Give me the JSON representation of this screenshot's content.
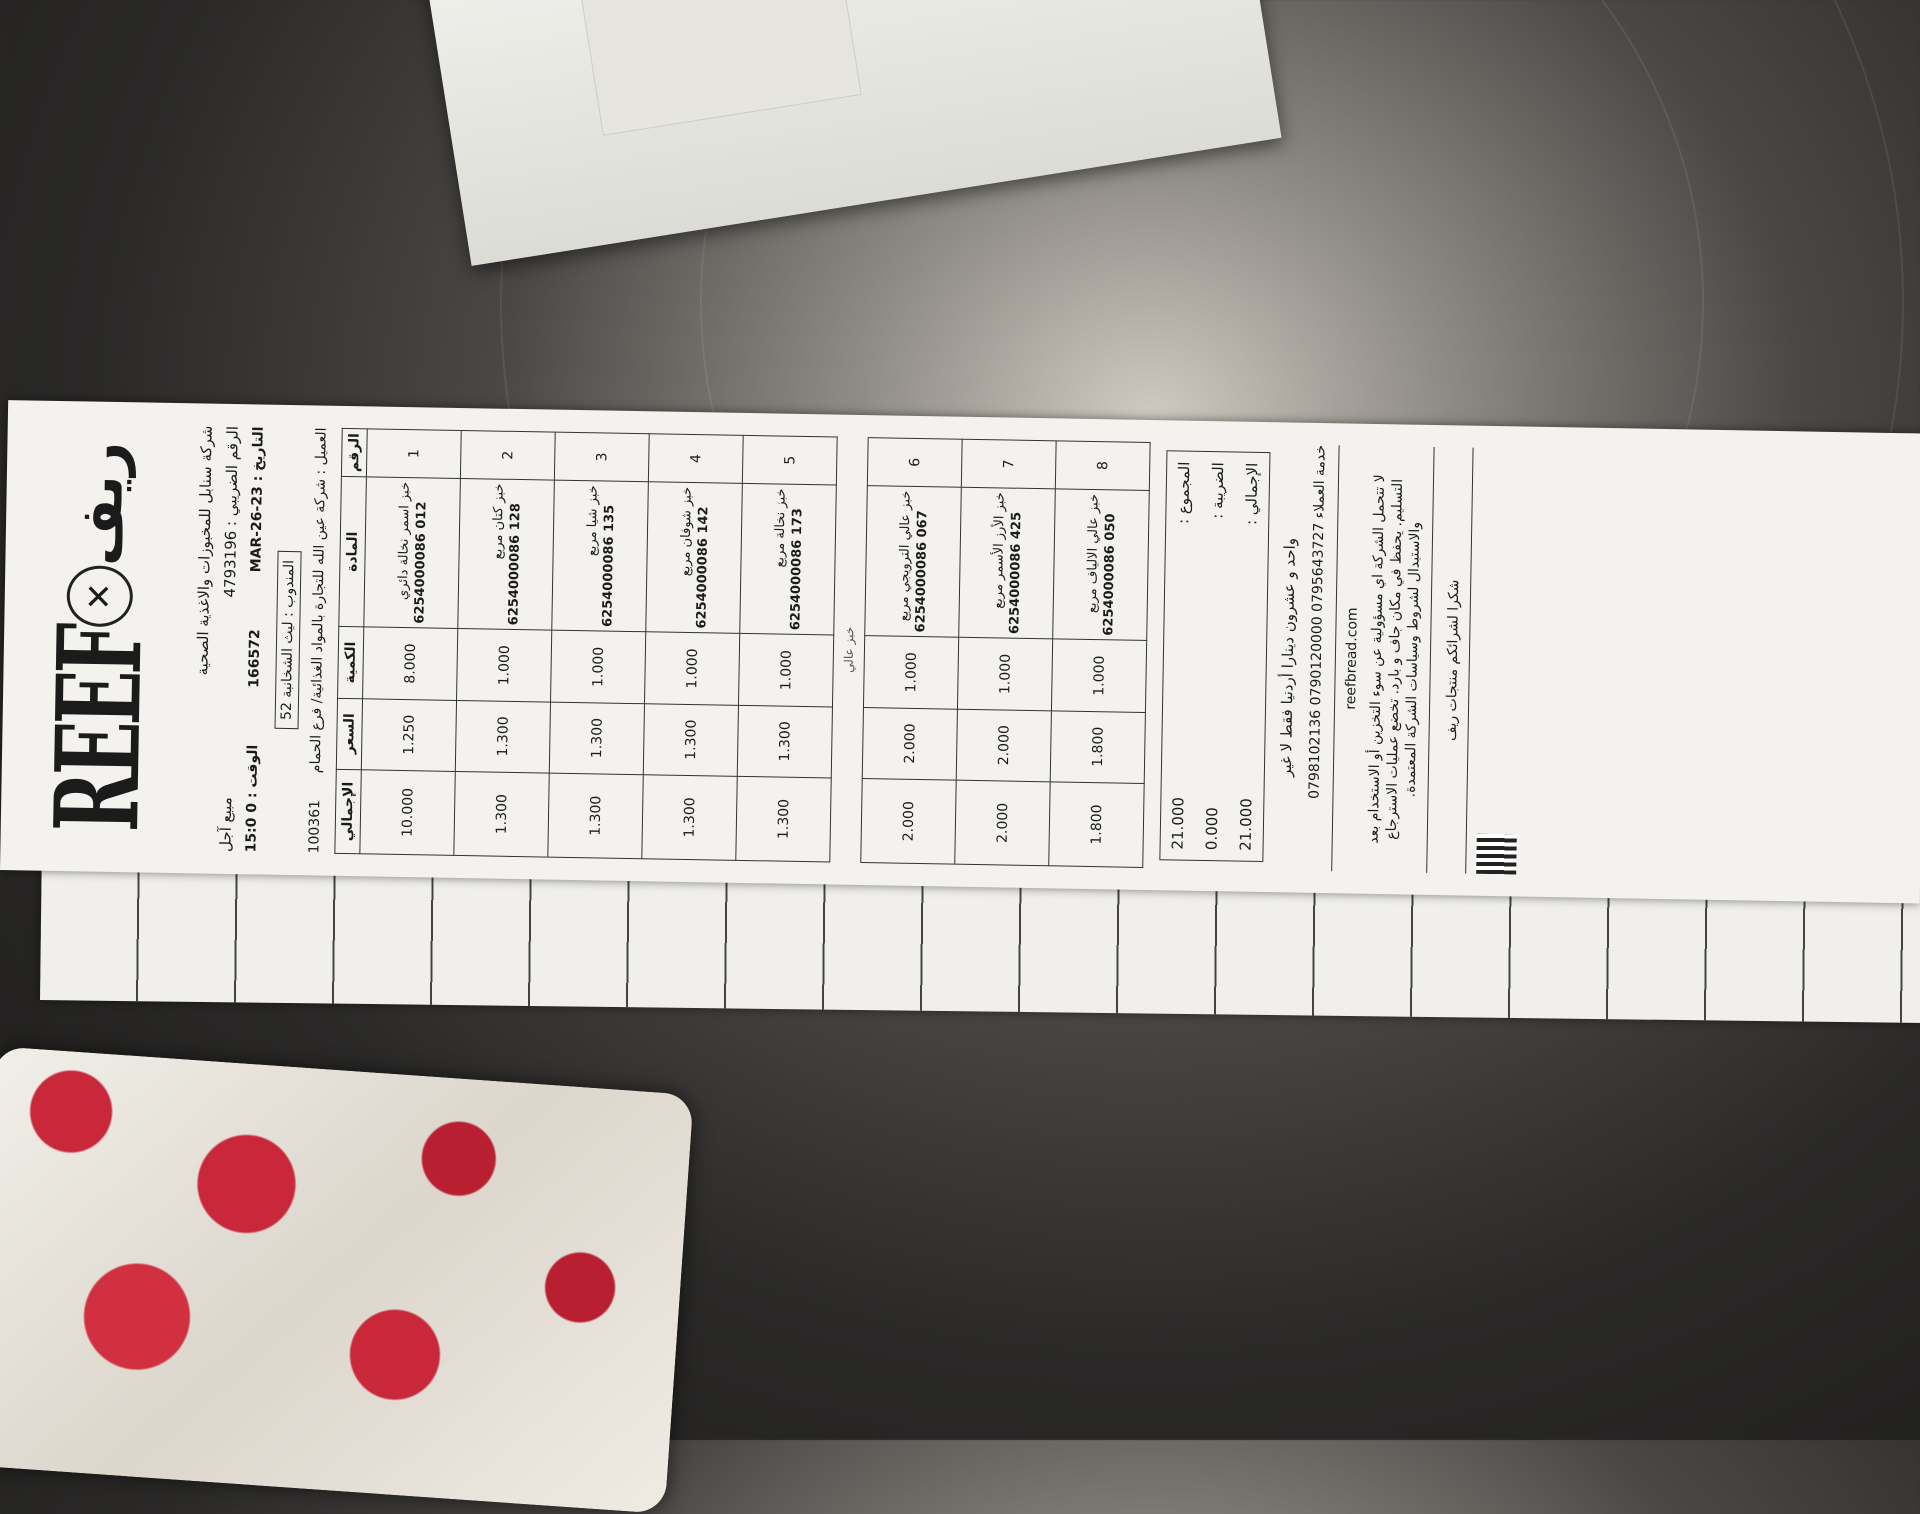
{
  "receipt": {
    "logo_en": "REEF",
    "logo_ar": "ريف",
    "company_name": "شركة سنابل للمخبوزات والاغذية الصحية",
    "tax_number": "الرقم الضريبي : 4793196",
    "sale_type": "مبيع آجل",
    "time_label": "الوقت :",
    "time_value": "15:0 0",
    "invoice_number": "166572",
    "date_label": "التاريخ :",
    "date_value": "MAR-26-23",
    "representative": "المندوب : ليث الشخانبة 52",
    "client_label": "العميل :",
    "client_value": "شركة عين الله للتجارة بالمواد الغذائية/ فرع الحمام",
    "client_code": "100361",
    "headers": {
      "num": "الرقم",
      "item": "المادة",
      "qty": "الكمية",
      "price": "السعر",
      "total": "الإجمالي"
    },
    "items": [
      {
        "num": "1",
        "name": "خبز اسمر نخالة دائري",
        "code": "6254000086 012",
        "qty": "8.000",
        "price": "1.250",
        "total": "10.000"
      },
      {
        "num": "2",
        "name": "خبز كتان مربع",
        "code": "6254000086 128",
        "qty": "1.000",
        "price": "1.300",
        "total": "1.300"
      },
      {
        "num": "3",
        "name": "خبز شيا مربع",
        "code": "6254000086 135",
        "qty": "1.000",
        "price": "1.300",
        "total": "1.300"
      },
      {
        "num": "4",
        "name": "خبز شوفان مربع",
        "code": "6254000086 142",
        "qty": "1.000",
        "price": "1.300",
        "total": "1.300"
      },
      {
        "num": "5",
        "name": "خبز نخالة مربع",
        "code": "6254000086 173",
        "qty": "1.000",
        "price": "1.300",
        "total": "1.300"
      },
      {
        "num": "6",
        "name": "خبز عالي الترويجي مربع",
        "code": "6254000086 067",
        "qty": "1.000",
        "price": "2.000",
        "total": "2.000"
      },
      {
        "num": "7",
        "name": "خبز الأرز الأسمر مربع",
        "code": "6254000086 425",
        "qty": "1.000",
        "price": "2.000",
        "total": "2.000"
      },
      {
        "num": "8",
        "name": "خبز عالي الالياف مربع",
        "code": "6254000086 050",
        "qty": "1.000",
        "price": "1.800",
        "total": "1.800"
      }
    ],
    "page_break_text": "خبز عالي",
    "totals": [
      {
        "label": "المجموع :",
        "value": "21.000"
      },
      {
        "label": "الضريبة :",
        "value": "0.000"
      },
      {
        "label": "الإجمالي :",
        "value": "21.000"
      }
    ],
    "amount_in_words": "واحد و عشرون دينارا أردنيا فقط لا غير",
    "customer_service": "خدمة العملاء 0795643727 0790120000 0798102136",
    "website": "reefbread.com",
    "disclaimer": "لا تتحمل الشركة اي مسؤولية عن سوء التخزين أو الاستخدام بعد التسليم. يحفظ في مكان جاف و بارد. تخضع عمليات الاسترجاع والاستبدال لشروط وسياسات الشركة المعتمدة.",
    "thanks": "شكرا لشرائكم منتجات ريف"
  },
  "background": {
    "surface_color": "#4a4745",
    "paper_color": "#f3f2ee",
    "ink_color": "#1b1b1b",
    "bag_accent": "#c8283a"
  }
}
